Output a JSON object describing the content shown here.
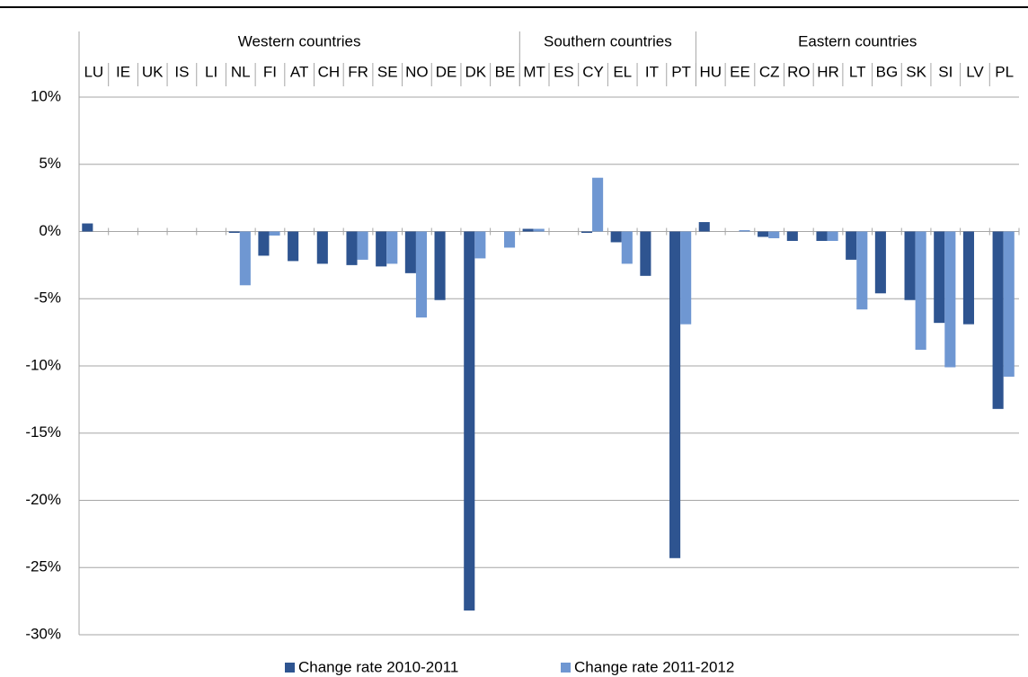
{
  "chart_data": {
    "type": "bar",
    "groups": [
      {
        "label": "Western countries",
        "count": 15
      },
      {
        "label": "Southern countries",
        "count": 6
      },
      {
        "label": "Eastern countries",
        "count": 11
      }
    ],
    "categories": [
      "LU",
      "IE",
      "UK",
      "IS",
      "LI",
      "NL",
      "FI",
      "AT",
      "CH",
      "FR",
      "SE",
      "NO",
      "DE",
      "DK",
      "BE",
      "MT",
      "ES",
      "CY",
      "EL",
      "IT",
      "PT",
      "HU",
      "EE",
      "CZ",
      "RO",
      "HR",
      "LT",
      "BG",
      "SK",
      "SI",
      "LV",
      "PL"
    ],
    "series": [
      {
        "name": "Change rate 2010-2011",
        "color": "#2e5490",
        "values": [
          0.6,
          null,
          null,
          null,
          null,
          -0.1,
          -1.8,
          -2.2,
          -2.4,
          -2.5,
          -2.6,
          -3.1,
          -5.1,
          -28.2,
          null,
          0.2,
          null,
          -0.1,
          -0.8,
          -3.3,
          -24.3,
          0.7,
          null,
          -0.4,
          -0.7,
          -0.7,
          -2.1,
          -4.6,
          -5.1,
          -6.8,
          -6.9,
          -13.2
        ]
      },
      {
        "name": "Change rate 2011-2012",
        "color": "#6f97d2",
        "values": [
          null,
          null,
          null,
          null,
          null,
          -4.0,
          -0.3,
          null,
          null,
          -2.1,
          -2.4,
          -6.4,
          null,
          -2.0,
          -1.2,
          0.2,
          null,
          4.0,
          -2.4,
          null,
          -6.9,
          null,
          0.1,
          -0.5,
          null,
          -0.7,
          -5.8,
          null,
          -8.8,
          -10.1,
          null,
          -10.8
        ]
      }
    ],
    "ylim": [
      -30,
      10
    ],
    "yticks": [
      {
        "value": -30,
        "label": "-30%"
      },
      {
        "value": -25,
        "label": "-25%"
      },
      {
        "value": -20,
        "label": "-20%"
      },
      {
        "value": -15,
        "label": "-15%"
      },
      {
        "value": -10,
        "label": "-10%"
      },
      {
        "value": -5,
        "label": "-5%"
      },
      {
        "value": 0,
        "label": "0%"
      },
      {
        "value": 5,
        "label": "5%"
      },
      {
        "value": 10,
        "label": "10%"
      }
    ],
    "grid": true,
    "legend": "bottom"
  }
}
